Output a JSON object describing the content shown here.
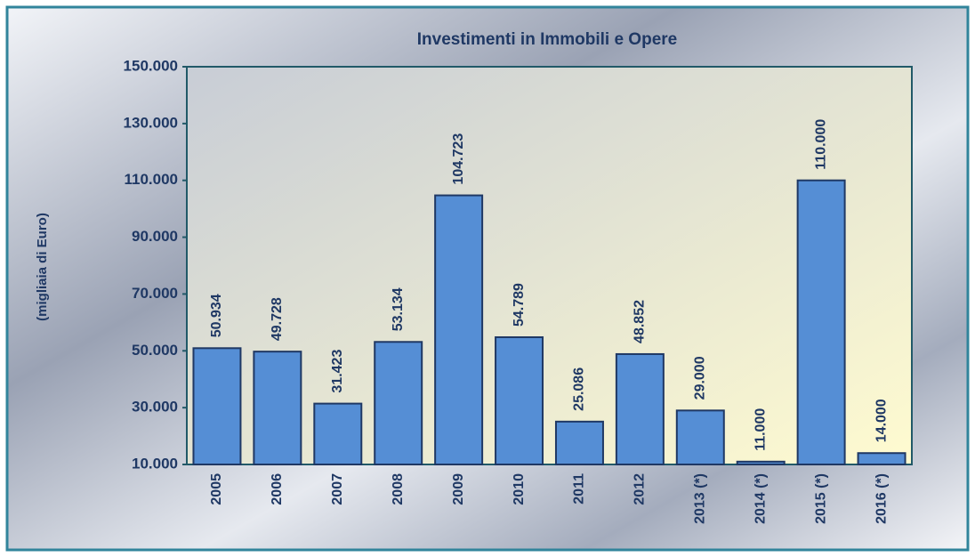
{
  "chart_data": {
    "type": "bar",
    "title": "Investimenti in Immobili e Opere",
    "y_label": "(migliaia di Euro)",
    "categories": [
      "2005",
      "2006",
      "2007",
      "2008",
      "2009",
      "2010",
      "2011",
      "2012",
      "2013 (*)",
      "2014 (*)",
      "2015 (*)",
      "2016 (*)"
    ],
    "values": [
      50934,
      49728,
      31423,
      53134,
      104723,
      54789,
      25086,
      48852,
      29000,
      11000,
      110000,
      14000
    ],
    "value_labels": [
      "50.934",
      "49.728",
      "31.423",
      "53.134",
      "104.723",
      "54.789",
      "25.086",
      "48.852",
      "29.000",
      "11.000",
      "110.000",
      "14.000"
    ],
    "color": "#558ed5",
    "ylim": [
      10000,
      150000
    ],
    "yticks": [
      {
        "value": 10000,
        "label": "10.000"
      },
      {
        "value": 30000,
        "label": "30.000"
      },
      {
        "value": 50000,
        "label": "50.000"
      },
      {
        "value": 70000,
        "label": "70.000"
      },
      {
        "value": 90000,
        "label": "90.000"
      },
      {
        "value": 110000,
        "label": "110.000"
      },
      {
        "value": 130000,
        "label": "130.000"
      },
      {
        "value": 150000,
        "label": "150.000"
      }
    ],
    "grid": false
  }
}
